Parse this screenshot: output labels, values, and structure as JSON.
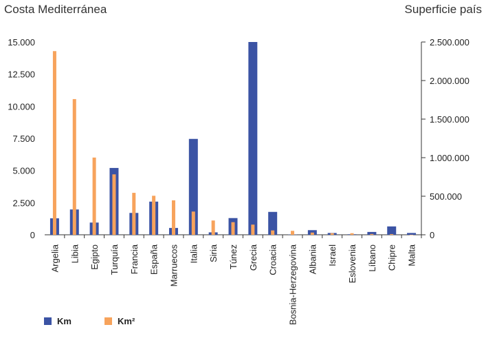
{
  "chart_data": {
    "type": "bar",
    "left_title": "Costa Mediterránea",
    "right_title": "Superficie país",
    "categories": [
      "Argelia",
      "Libia",
      "Egipto",
      "Turquía",
      "Francia",
      "España",
      "Marruecos",
      "Italia",
      "Siria",
      "Túnez",
      "Grecia",
      "Croacia",
      "Bosnia-Herzegovina",
      "Albania",
      "Israel",
      "Eslovenia",
      "Líbano",
      "Chipre",
      "Malta"
    ],
    "series": [
      {
        "name": "Km",
        "axis": "left",
        "color": "#3b53a4",
        "values": [
          1280,
          1970,
          950,
          5200,
          1700,
          2580,
          530,
          7460,
          190,
          1300,
          15000,
          1780,
          20,
          360,
          140,
          40,
          220,
          650,
          140
        ]
      },
      {
        "name": "Km²",
        "axis": "right",
        "color": "#f7a35c",
        "values": [
          2381741,
          1759540,
          1001450,
          783562,
          543965,
          505990,
          446550,
          301340,
          185180,
          163610,
          131957,
          56594,
          51197,
          28748,
          20770,
          20273,
          10452,
          9251,
          316
        ]
      }
    ],
    "left_axis": {
      "ylim": [
        0,
        15000
      ],
      "ticks": [
        "0",
        "2.500",
        "5.000",
        "7.500",
        "10.000",
        "12.500",
        "15.000"
      ]
    },
    "right_axis": {
      "ylim": [
        0,
        2500000
      ],
      "ticks": [
        "0",
        "500.000",
        "1.000.000",
        "1.500.000",
        "2.000.000",
        "2.500.000"
      ]
    },
    "legend": [
      {
        "label": "Km",
        "color": "#3b53a4"
      },
      {
        "label": "Km²",
        "color": "#f7a35c"
      }
    ],
    "legend_position": "bottom-left",
    "grid": false
  }
}
